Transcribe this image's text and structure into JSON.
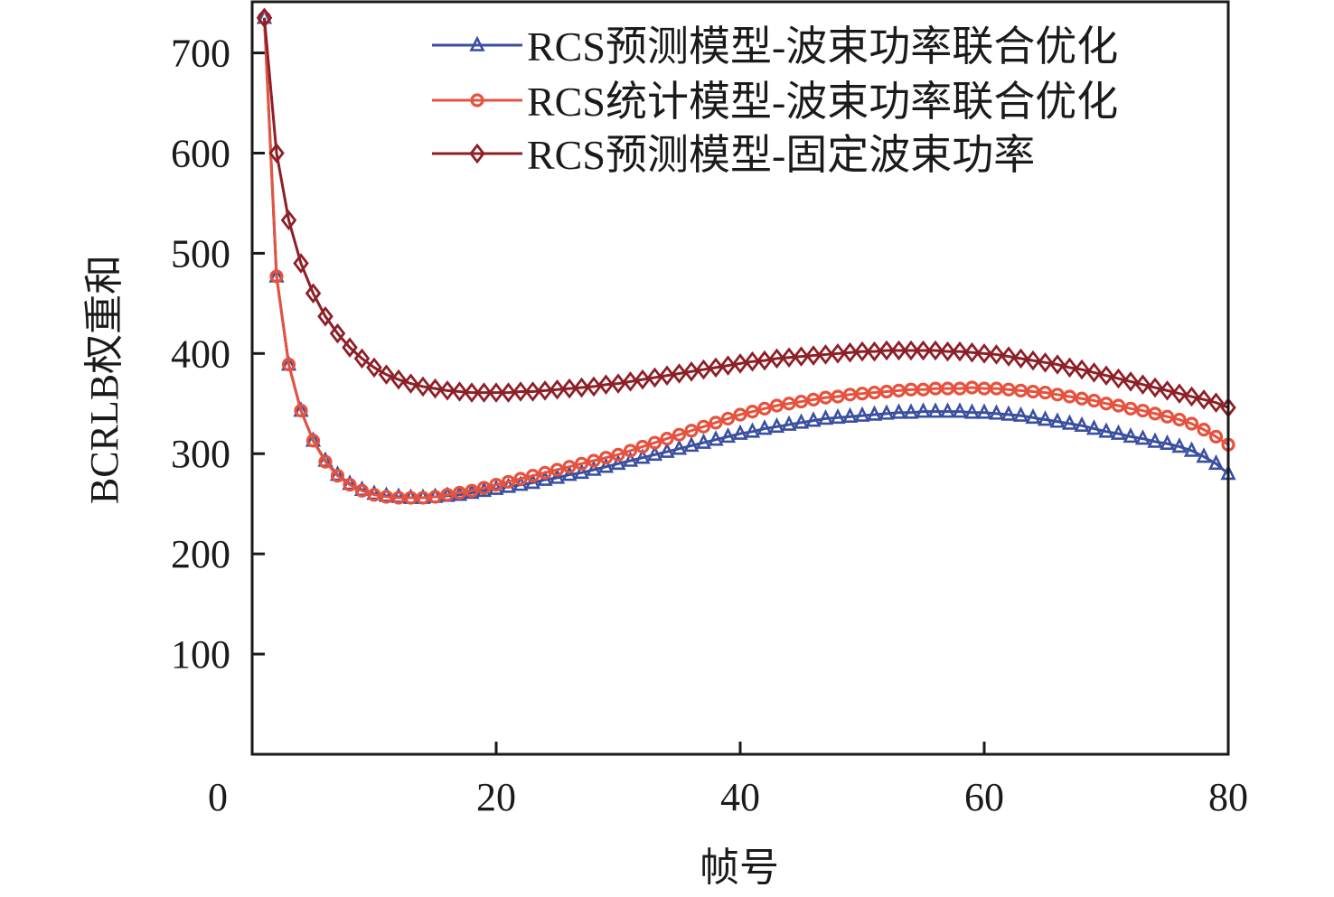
{
  "chart_data": {
    "type": "line",
    "title": "",
    "xlabel": "帧号",
    "ylabel": "BCRLB权重和",
    "xlim": [
      0,
      80
    ],
    "ylim": [
      0,
      751
    ],
    "xticks": [
      0,
      20,
      40,
      60,
      80
    ],
    "yticks": [
      100,
      200,
      300,
      400,
      500,
      600,
      700
    ],
    "grid": false,
    "legend_position": "top-right",
    "series": [
      {
        "name": "RCS预测模型-波束功率联合优化",
        "color": "#3a4fa0",
        "marker": "triangle",
        "values": [
          735,
          477,
          389,
          343,
          313,
          293,
          279,
          270,
          264,
          260,
          258,
          257,
          256,
          256,
          257,
          258,
          259,
          261,
          263,
          265,
          267,
          269,
          271,
          274,
          276,
          279,
          281,
          284,
          287,
          290,
          293,
          296,
          299,
          302,
          305,
          308,
          311,
          314,
          317,
          320,
          322,
          325,
          327,
          329,
          331,
          333,
          335,
          336,
          337,
          338,
          339,
          340,
          341,
          341,
          342,
          342,
          342,
          342,
          341,
          341,
          340,
          339,
          338,
          336,
          334,
          332,
          330,
          328,
          325,
          322,
          320,
          317,
          315,
          312,
          310,
          307,
          303,
          297,
          290,
          280
        ]
      },
      {
        "name": "RCS统计模型-波束功率联合优化",
        "color": "#e5533f",
        "marker": "circle",
        "values": [
          735,
          477,
          389,
          343,
          313,
          292,
          278,
          269,
          263,
          259,
          257,
          256,
          256,
          256,
          257,
          259,
          261,
          263,
          266,
          269,
          272,
          275,
          278,
          281,
          284,
          287,
          290,
          293,
          296,
          299,
          303,
          307,
          311,
          315,
          319,
          323,
          327,
          331,
          335,
          339,
          342,
          345,
          348,
          350,
          352,
          354,
          356,
          357,
          359,
          360,
          361,
          362,
          363,
          364,
          364,
          365,
          365,
          365,
          366,
          365,
          365,
          364,
          363,
          362,
          361,
          359,
          357,
          355,
          353,
          350,
          348,
          345,
          343,
          340,
          337,
          334,
          330,
          324,
          317,
          309
        ]
      },
      {
        "name": "RCS预测模型-固定波束功率",
        "color": "#8e1f27",
        "marker": "diamond",
        "values": [
          735,
          600,
          533,
          490,
          460,
          437,
          420,
          406,
          395,
          386,
          379,
          374,
          370,
          367,
          365,
          363,
          362,
          361,
          361,
          361,
          361,
          362,
          362,
          363,
          364,
          365,
          366,
          367,
          369,
          370,
          372,
          374,
          376,
          378,
          380,
          382,
          384,
          386,
          388,
          390,
          392,
          393,
          395,
          396,
          397,
          398,
          399,
          400,
          401,
          402,
          402,
          403,
          403,
          403,
          403,
          403,
          402,
          402,
          401,
          400,
          399,
          397,
          395,
          393,
          391,
          389,
          386,
          384,
          381,
          378,
          375,
          372,
          369,
          366,
          363,
          360,
          357,
          354,
          351,
          346
        ]
      }
    ]
  }
}
